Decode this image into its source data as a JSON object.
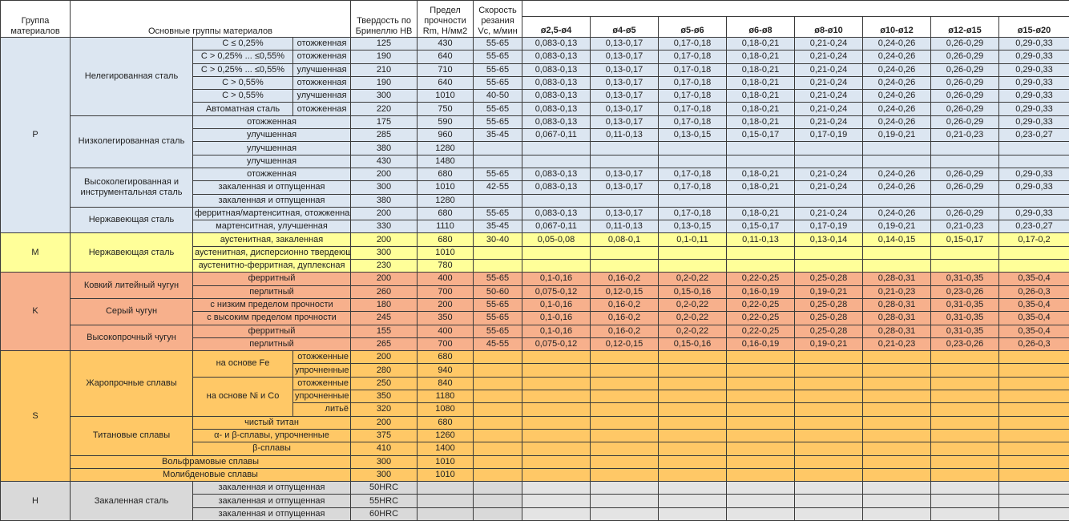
{
  "header": {
    "group": "Группа материалов",
    "main": "Основные группы материалов",
    "hardness": "Твердость по Бринеллю НВ",
    "strength": "Предел прочности Rm, Н/мм2",
    "speed": "Скорость резания Vc, м/мин",
    "diameters": [
      "ø2,5-ø4",
      "ø4-ø5",
      "ø5-ø6",
      "ø6-ø8",
      "ø8-ø10",
      "ø10-ø12",
      "ø12-ø15",
      "ø15-ø20"
    ]
  },
  "groups": [
    {
      "code": "P",
      "color": "#dce6f1",
      "subgroups": [
        {
          "name": "Нелегированная сталь",
          "rows": [
            {
              "cond": "C ≤ 0,25%",
              "state": "отожженная",
              "hb": "125",
              "rm": "430",
              "vc": "55-65",
              "feed": [
                "0,083-0,13",
                "0,13-0,17",
                "0,17-0,18",
                "0,18-0,21",
                "0,21-0,24",
                "0,24-0,26",
                "0,26-0,29",
                "0,29-0,33"
              ]
            },
            {
              "cond": "C > 0,25% ... ≤0,55%",
              "state": "отожженная",
              "hb": "190",
              "rm": "640",
              "vc": "55-65",
              "feed": [
                "0,083-0,13",
                "0,13-0,17",
                "0,17-0,18",
                "0,18-0,21",
                "0,21-0,24",
                "0,24-0,26",
                "0,26-0,29",
                "0,29-0,33"
              ]
            },
            {
              "cond": "C > 0,25% ... ≤0,55%",
              "state": "улучшенная",
              "hb": "210",
              "rm": "710",
              "vc": "55-65",
              "feed": [
                "0,083-0,13",
                "0,13-0,17",
                "0,17-0,18",
                "0,18-0,21",
                "0,21-0,24",
                "0,24-0,26",
                "0,26-0,29",
                "0,29-0,33"
              ]
            },
            {
              "cond": "C > 0,55%",
              "state": "отожженная",
              "hb": "190",
              "rm": "640",
              "vc": "55-65",
              "feed": [
                "0,083-0,13",
                "0,13-0,17",
                "0,17-0,18",
                "0,18-0,21",
                "0,21-0,24",
                "0,24-0,26",
                "0,26-0,29",
                "0,29-0,33"
              ]
            },
            {
              "cond": "C > 0,55%",
              "state": "улучшенная",
              "hb": "300",
              "rm": "1010",
              "vc": "40-50",
              "feed": [
                "0,083-0,13",
                "0,13-0,17",
                "0,17-0,18",
                "0,18-0,21",
                "0,21-0,24",
                "0,24-0,26",
                "0,26-0,29",
                "0,29-0,33"
              ]
            },
            {
              "cond": "Автоматная сталь",
              "state": "отожженная",
              "hb": "220",
              "rm": "750",
              "vc": "55-65",
              "feed": [
                "0,083-0,13",
                "0,13-0,17",
                "0,17-0,18",
                "0,18-0,21",
                "0,21-0,24",
                "0,24-0,26",
                "0,26-0,29",
                "0,29-0,33"
              ]
            }
          ]
        },
        {
          "name": "Низколегированная сталь",
          "rows": [
            {
              "state": "отожженная",
              "hb": "175",
              "rm": "590",
              "vc": "55-65",
              "feed": [
                "0,083-0,13",
                "0,13-0,17",
                "0,17-0,18",
                "0,18-0,21",
                "0,21-0,24",
                "0,24-0,26",
                "0,26-0,29",
                "0,29-0,33"
              ]
            },
            {
              "state": "улучшенная",
              "hb": "285",
              "rm": "960",
              "vc": "35-45",
              "feed": [
                "0,067-0,11",
                "0,11-0,13",
                "0,13-0,15",
                "0,15-0,17",
                "0,17-0,19",
                "0,19-0,21",
                "0,21-0,23",
                "0,23-0,27"
              ]
            },
            {
              "state": "улучшенная",
              "hb": "380",
              "rm": "1280",
              "vc": "",
              "feed": []
            },
            {
              "state": "улучшенная",
              "hb": "430",
              "rm": "1480",
              "vc": "",
              "feed": []
            }
          ]
        },
        {
          "name": "Высоколегированная и инструментальная сталь",
          "rows": [
            {
              "state": "отожженная",
              "hb": "200",
              "rm": "680",
              "vc": "55-65",
              "feed": [
                "0,083-0,13",
                "0,13-0,17",
                "0,17-0,18",
                "0,18-0,21",
                "0,21-0,24",
                "0,24-0,26",
                "0,26-0,29",
                "0,29-0,33"
              ]
            },
            {
              "state": "закаленная и отпущенная",
              "hb": "300",
              "rm": "1010",
              "vc": "42-55",
              "feed": [
                "0,083-0,13",
                "0,13-0,17",
                "0,17-0,18",
                "0,18-0,21",
                "0,21-0,24",
                "0,24-0,26",
                "0,26-0,29",
                "0,29-0,33"
              ]
            },
            {
              "state": "закаленная и отпущенная",
              "hb": "380",
              "rm": "1280",
              "vc": "",
              "feed": []
            }
          ]
        },
        {
          "name": "Нержавеющая сталь",
          "rows": [
            {
              "state": "ферритная/мартенситная, отожженная",
              "hb": "200",
              "rm": "680",
              "vc": "55-65",
              "feed": [
                "0,083-0,13",
                "0,13-0,17",
                "0,17-0,18",
                "0,18-0,21",
                "0,21-0,24",
                "0,24-0,26",
                "0,26-0,29",
                "0,29-0,33"
              ]
            },
            {
              "state": "мартенситная, улучшенная",
              "hb": "330",
              "rm": "1110",
              "vc": "35-45",
              "feed": [
                "0,067-0,11",
                "0,11-0,13",
                "0,13-0,15",
                "0,15-0,17",
                "0,17-0,19",
                "0,19-0,21",
                "0,21-0,23",
                "0,23-0,27"
              ]
            }
          ]
        }
      ]
    },
    {
      "code": "M",
      "color": "#ffff99",
      "subgroups": [
        {
          "name": "Нержавеющая сталь",
          "rows": [
            {
              "state": "аустенитная, закаленная",
              "hb": "200",
              "rm": "680",
              "vc": "30-40",
              "feed": [
                "0,05-0,08",
                "0,08-0,1",
                "0,1-0,11",
                "0,11-0,13",
                "0,13-0,14",
                "0,14-0,15",
                "0,15-0,17",
                "0,17-0,2"
              ]
            },
            {
              "state": "аустенитная, дисперсионно твердеющая",
              "hb": "300",
              "rm": "1010",
              "vc": "",
              "feed": []
            },
            {
              "state": "аустенитно-ферритная, дуплексная",
              "hb": "230",
              "rm": "780",
              "vc": "",
              "feed": []
            }
          ]
        }
      ]
    },
    {
      "code": "K",
      "color": "#f7b08c",
      "subgroups": [
        {
          "name": "Ковкий литейный чугун",
          "rows": [
            {
              "state": "ферритный",
              "hb": "200",
              "rm": "400",
              "vc": "55-65",
              "feed": [
                "0,1-0,16",
                "0,16-0,2",
                "0,2-0,22",
                "0,22-0,25",
                "0,25-0,28",
                "0,28-0,31",
                "0,31-0,35",
                "0,35-0,4"
              ]
            },
            {
              "state": "перлитный",
              "hb": "260",
              "rm": "700",
              "vc": "50-60",
              "feed": [
                "0,075-0,12",
                "0,12-0,15",
                "0,15-0,16",
                "0,16-0,19",
                "0,19-0,21",
                "0,21-0,23",
                "0,23-0,26",
                "0,26-0,3"
              ]
            }
          ]
        },
        {
          "name": "Серый чугун",
          "rows": [
            {
              "state": "с низким пределом прочности",
              "hb": "180",
              "rm": "200",
              "vc": "55-65",
              "feed": [
                "0,1-0,16",
                "0,16-0,2",
                "0,2-0,22",
                "0,22-0,25",
                "0,25-0,28",
                "0,28-0,31",
                "0,31-0,35",
                "0,35-0,4"
              ]
            },
            {
              "state": "с высоким пределом прочности",
              "hb": "245",
              "rm": "350",
              "vc": "55-65",
              "feed": [
                "0,1-0,16",
                "0,16-0,2",
                "0,2-0,22",
                "0,22-0,25",
                "0,25-0,28",
                "0,28-0,31",
                "0,31-0,35",
                "0,35-0,4"
              ]
            }
          ]
        },
        {
          "name": "Высокопрочный чугун",
          "rows": [
            {
              "state": "ферритный",
              "hb": "155",
              "rm": "400",
              "vc": "55-65",
              "feed": [
                "0,1-0,16",
                "0,16-0,2",
                "0,2-0,22",
                "0,22-0,25",
                "0,25-0,28",
                "0,28-0,31",
                "0,31-0,35",
                "0,35-0,4"
              ]
            },
            {
              "state": "перлитный",
              "hb": "265",
              "rm": "700",
              "vc": "45-55",
              "feed": [
                "0,075-0,12",
                "0,12-0,15",
                "0,15-0,16",
                "0,16-0,19",
                "0,19-0,21",
                "0,21-0,23",
                "0,23-0,26",
                "0,26-0,3"
              ]
            }
          ]
        }
      ]
    },
    {
      "code": "S",
      "color": "#ffc866",
      "subgroups": [
        {
          "name": "Жаропрочные сплавы",
          "bases": [
            {
              "base": "на основе Fe",
              "rows": [
                {
                  "state": "отожженные",
                  "hb": "200",
                  "rm": "680",
                  "vc": "",
                  "feed": []
                },
                {
                  "state": "упрочненные",
                  "hb": "280",
                  "rm": "940",
                  "vc": "",
                  "feed": []
                }
              ]
            },
            {
              "base": "на основе Ni и Co",
              "rows": [
                {
                  "state": "отожженные",
                  "hb": "250",
                  "rm": "840",
                  "vc": "",
                  "feed": []
                },
                {
                  "state": "упрочненные",
                  "hb": "350",
                  "rm": "1180",
                  "vc": "",
                  "feed": []
                },
                {
                  "state": "литьё",
                  "hb": "320",
                  "rm": "1080",
                  "vc": "",
                  "feed": []
                }
              ]
            }
          ]
        },
        {
          "name": "Титановые сплавы",
          "rows": [
            {
              "state": "чистый титан",
              "hb": "200",
              "rm": "680",
              "vc": "",
              "feed": []
            },
            {
              "state": "α- и β-сплавы, упрочненные",
              "hb": "375",
              "rm": "1260",
              "vc": "",
              "feed": []
            },
            {
              "state": "β-сплавы",
              "hb": "410",
              "rm": "1400",
              "vc": "",
              "feed": []
            }
          ]
        },
        {
          "name": "Вольфрамовые сплавы",
          "wide": true,
          "rows": [
            {
              "hb": "300",
              "rm": "1010",
              "vc": "",
              "feed": []
            }
          ]
        },
        {
          "name": "Молибденовые сплавы",
          "wide": true,
          "rows": [
            {
              "hb": "300",
              "rm": "1010",
              "vc": "",
              "feed": []
            }
          ]
        }
      ]
    },
    {
      "code": "H",
      "color": "#d9d9d9",
      "feed_color": "#e4e4e4",
      "subgroups": [
        {
          "name": "Закаленная сталь",
          "rows": [
            {
              "state": "закаленная и отпущенная",
              "hb": "50HRC",
              "rm": "",
              "vc": "",
              "feed": []
            },
            {
              "state": "закаленная и отпущенная",
              "hb": "55HRC",
              "rm": "",
              "vc": "",
              "feed": []
            },
            {
              "state": "закаленная и отпущенная",
              "hb": "60HRC",
              "rm": "",
              "vc": "",
              "feed": []
            }
          ]
        }
      ]
    }
  ]
}
